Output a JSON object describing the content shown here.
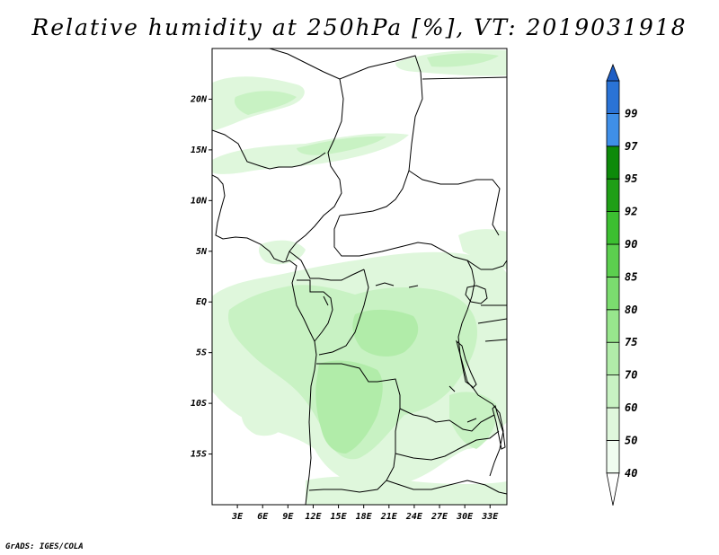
{
  "title": "Relative humidity at 250hPa [%], VT: 2019031918",
  "credit": "GrADS: IGES/COLA",
  "map": {
    "lon_range": [
      0,
      35
    ],
    "lat_range": [
      -20,
      25
    ],
    "lat_ticks": [
      {
        "value": 20,
        "label": "20N"
      },
      {
        "value": 15,
        "label": "15N"
      },
      {
        "value": 10,
        "label": "10N"
      },
      {
        "value": 5,
        "label": "5N"
      },
      {
        "value": 0,
        "label": "EQ"
      },
      {
        "value": -5,
        "label": "5S"
      },
      {
        "value": -10,
        "label": "10S"
      },
      {
        "value": -15,
        "label": "15S"
      }
    ],
    "lon_ticks": [
      {
        "value": 3,
        "label": "3E"
      },
      {
        "value": 6,
        "label": "6E"
      },
      {
        "value": 9,
        "label": "9E"
      },
      {
        "value": 12,
        "label": "12E"
      },
      {
        "value": 15,
        "label": "15E"
      },
      {
        "value": 18,
        "label": "18E"
      },
      {
        "value": 21,
        "label": "21E"
      },
      {
        "value": 24,
        "label": "24E"
      },
      {
        "value": 27,
        "label": "27E"
      },
      {
        "value": 30,
        "label": "30E"
      },
      {
        "value": 33,
        "label": "33E"
      }
    ]
  },
  "colorbar": {
    "levels": [
      {
        "label": "40",
        "color": "#f0fcf0"
      },
      {
        "label": "50",
        "color": "#dff7dc"
      },
      {
        "label": "60",
        "color": "#c8f2c3"
      },
      {
        "label": "70",
        "color": "#b1eca9"
      },
      {
        "label": "75",
        "color": "#98e68d"
      },
      {
        "label": "80",
        "color": "#7bdc6f"
      },
      {
        "label": "85",
        "color": "#5ccf4f"
      },
      {
        "label": "90",
        "color": "#3cbf31"
      },
      {
        "label": "92",
        "color": "#1f9f17"
      },
      {
        "label": "95",
        "color": "#0d8a0a"
      },
      {
        "label": "97",
        "color": "#3f8fe8"
      },
      {
        "label": "99",
        "color": "#2a73d6"
      }
    ],
    "top_cap_color": "#1f5ec4",
    "bottom_cap_color": "#ffffff"
  }
}
